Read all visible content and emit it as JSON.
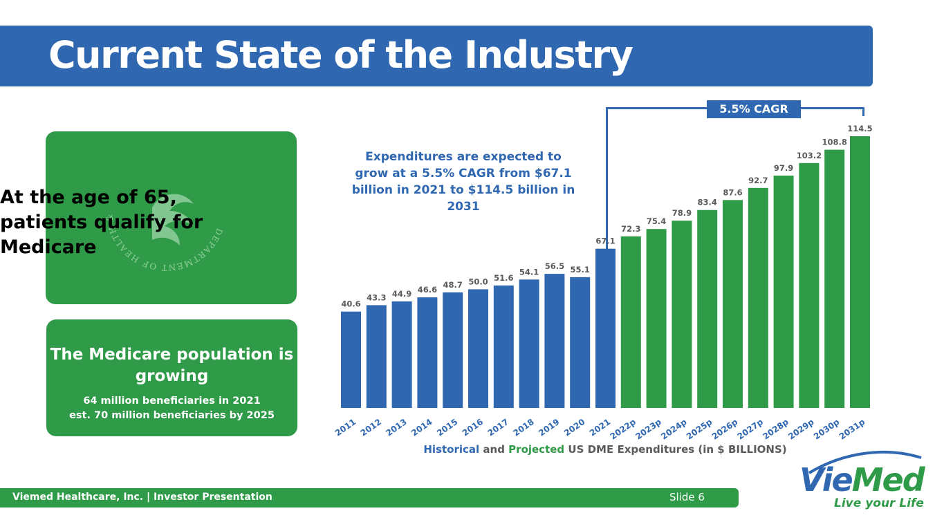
{
  "header": {
    "title": "Current State of the Industry"
  },
  "cards": {
    "medicare_age": "At the age of 65, patients qualify for Medicare",
    "population_title": "The Medicare population is growing",
    "population_line1": "64 million beneficiaries in 2021",
    "population_line2": "est. 70 million beneficiaries by 2025"
  },
  "annotation": "Expenditures are expected to grow at a 5.5% CAGR from $67.1 billion in 2021 to $114.5 billion in 2031",
  "cagr_label": "5.5% CAGR",
  "seal": {
    "text": "DEPARTMENT OF HEALTH & HUMAN SERVICES · USA"
  },
  "caption": {
    "historical": "Historical",
    "and": "and",
    "projected": "Projected",
    "rest": "US DME Expenditures (in $ BILLIONS)"
  },
  "footer": {
    "left": "Viemed Healthcare, Inc. | Investor Presentation",
    "right": "Slide 6"
  },
  "logo": {
    "vie": "Vie",
    "med": "Med",
    "tagline": "Live your Life"
  },
  "colors": {
    "historical": "#2f67b1",
    "projected": "#2f9a47"
  },
  "chart_data": {
    "type": "bar",
    "categories": [
      "2011",
      "2012",
      "2013",
      "2014",
      "2015",
      "2016",
      "2017",
      "2018",
      "2019",
      "2020",
      "2021",
      "2022p",
      "2023p",
      "2024p",
      "2025p",
      "2026p",
      "2027p",
      "2028p",
      "2029p",
      "2030p",
      "2031p"
    ],
    "values": [
      40.6,
      43.3,
      44.9,
      46.6,
      48.7,
      50.0,
      51.6,
      54.1,
      56.5,
      55.1,
      67.1,
      72.3,
      75.4,
      78.9,
      83.4,
      87.6,
      92.7,
      97.9,
      103.2,
      108.8,
      114.5
    ],
    "value_labels": [
      "40.6",
      "43.3",
      "44.9",
      "46.6",
      "48.7",
      "50.0",
      "51.6",
      "54.1",
      "56.5",
      "55.1",
      "67.1",
      "72.3",
      "75.4",
      "78.9",
      "83.4",
      "87.6",
      "92.7",
      "97.9",
      "103.2",
      "108.8",
      "114.5"
    ],
    "groups": [
      "historical",
      "historical",
      "historical",
      "historical",
      "historical",
      "historical",
      "historical",
      "historical",
      "historical",
      "historical",
      "historical",
      "projected",
      "projected",
      "projected",
      "projected",
      "projected",
      "projected",
      "projected",
      "projected",
      "projected",
      "projected"
    ],
    "title": "Historical and Projected US DME Expenditures (in $ BILLIONS)",
    "ylim": [
      0,
      114.5
    ]
  }
}
